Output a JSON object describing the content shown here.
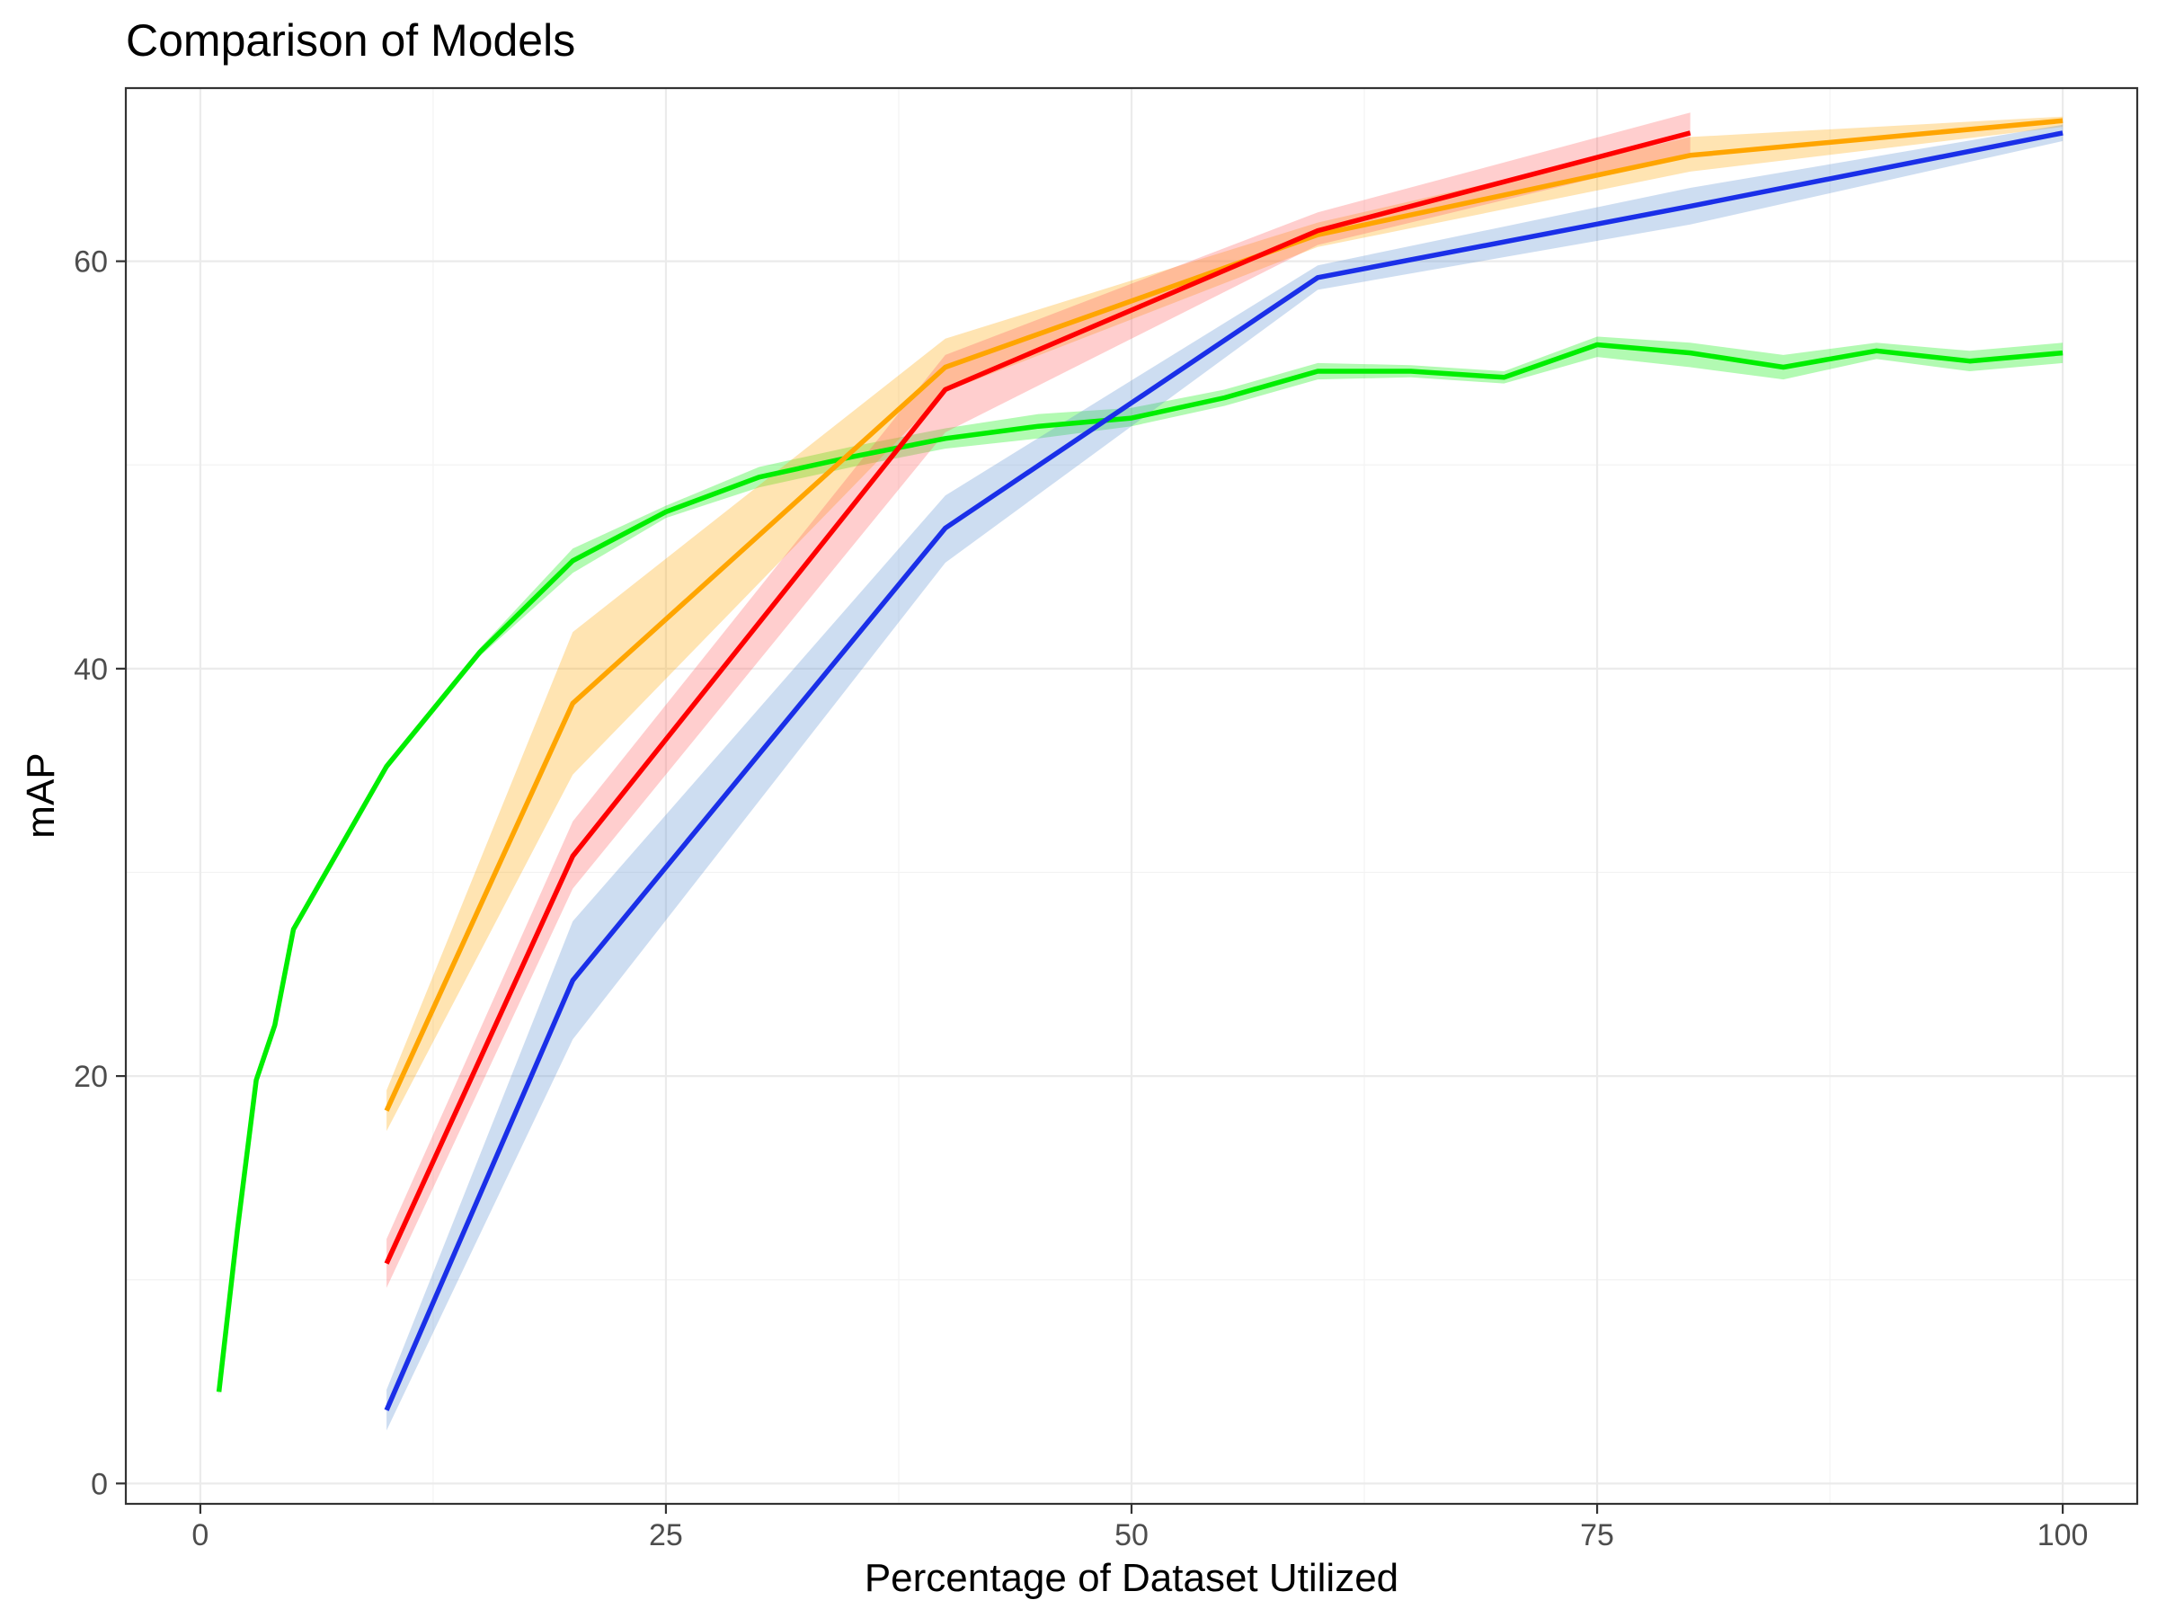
{
  "chart_data": {
    "type": "line",
    "title": "Comparison of Models",
    "xlabel": "Percentage of Dataset Utilized",
    "ylabel": "mAP",
    "xlim": [
      -4,
      104
    ],
    "ylim": [
      -1,
      68.5
    ],
    "x_ticks": [
      0,
      25,
      50,
      75,
      100
    ],
    "y_ticks": [
      0,
      20,
      40,
      60
    ],
    "grid": true,
    "legend": "none",
    "series": [
      {
        "color": "#00ee00",
        "band_color": "#00ee00",
        "x": [
          1,
          2,
          3,
          4,
          5,
          10,
          15,
          20,
          25,
          30,
          35,
          40,
          45,
          50,
          55,
          60,
          65,
          70,
          75,
          80,
          85,
          90,
          95,
          100
        ],
        "y": [
          4.5,
          12.5,
          19.8,
          22.5,
          27.2,
          35.2,
          40.8,
          45.3,
          47.7,
          49.4,
          50.4,
          51.3,
          51.9,
          52.3,
          53.3,
          54.6,
          54.6,
          54.3,
          55.9,
          55.5,
          54.8,
          55.6,
          55.1,
          55.5
        ],
        "lower": [
          4.3,
          12.3,
          19.6,
          22.3,
          27.0,
          35.0,
          40.6,
          44.7,
          47.4,
          48.9,
          49.9,
          50.8,
          51.3,
          51.9,
          52.9,
          54.2,
          54.3,
          54.0,
          55.3,
          54.8,
          54.2,
          55.2,
          54.6,
          55.0
        ],
        "upper": [
          4.7,
          12.7,
          20.0,
          22.7,
          27.4,
          35.4,
          41.0,
          45.9,
          48.0,
          49.9,
          50.9,
          51.8,
          52.5,
          52.8,
          53.7,
          55.0,
          54.9,
          54.6,
          56.3,
          56.0,
          55.4,
          56.0,
          55.6,
          56.0
        ]
      },
      {
        "color": "#ffa500",
        "band_color": "#ffa500",
        "x": [
          10,
          20,
          40,
          60,
          80,
          100
        ],
        "y": [
          18.3,
          38.3,
          54.8,
          61.3,
          65.2,
          66.9
        ],
        "lower": [
          17.3,
          34.8,
          53.6,
          60.7,
          64.4,
          66.6
        ],
        "upper": [
          19.3,
          41.8,
          56.2,
          61.9,
          66.1,
          67.1
        ]
      },
      {
        "color": "#ff0000",
        "band_color": "#ff5c5c",
        "x": [
          10,
          20,
          40,
          60,
          80
        ],
        "y": [
          10.8,
          30.8,
          53.7,
          61.5,
          66.3
        ],
        "lower": [
          9.6,
          29.2,
          51.6,
          60.8,
          65.2
        ],
        "upper": [
          12.0,
          32.5,
          55.4,
          62.4,
          67.3
        ]
      },
      {
        "color": "#1a2fe8",
        "band_color": "#5b8fd0",
        "x": [
          10,
          20,
          40,
          60,
          80,
          100
        ],
        "y": [
          3.6,
          24.7,
          46.9,
          59.2,
          62.7,
          66.3
        ],
        "lower": [
          2.6,
          21.8,
          45.2,
          58.6,
          61.8,
          65.9
        ],
        "upper": [
          4.6,
          27.6,
          48.5,
          59.8,
          63.6,
          66.7
        ]
      }
    ]
  }
}
